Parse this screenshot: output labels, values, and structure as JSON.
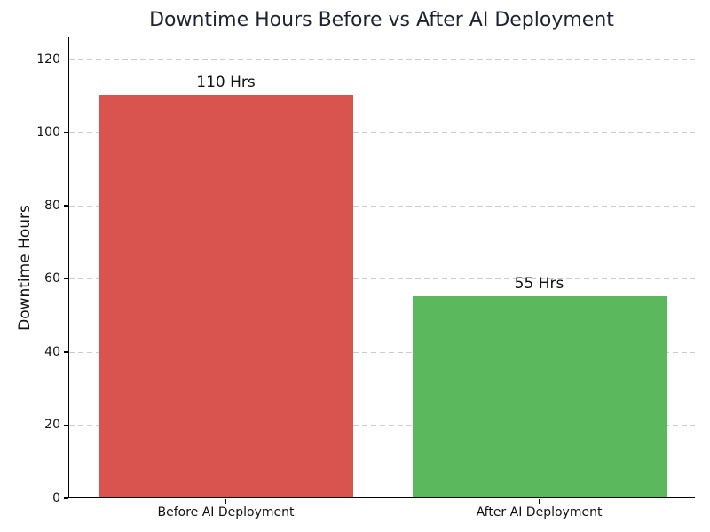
{
  "chart_data": {
    "type": "bar",
    "title": "Downtime Hours Before vs After AI Deployment",
    "xlabel": "",
    "ylabel": "Downtime Hours",
    "categories": [
      "Before AI Deployment",
      "After AI Deployment"
    ],
    "values": [
      110,
      55
    ],
    "bar_labels": [
      "110 Hrs",
      "55 Hrs"
    ],
    "bar_colors": [
      "#d9534f",
      "#5cb85c"
    ],
    "yticks": [
      0,
      20,
      40,
      60,
      80,
      100,
      120
    ],
    "ylim": [
      0,
      126
    ],
    "grid": {
      "axis": "y",
      "style": "dashed",
      "color": "#cbcbcb"
    },
    "legend": "none",
    "colors": {
      "title": "#1f2330",
      "axis": "#000000",
      "tick_labels": "#111111"
    }
  }
}
